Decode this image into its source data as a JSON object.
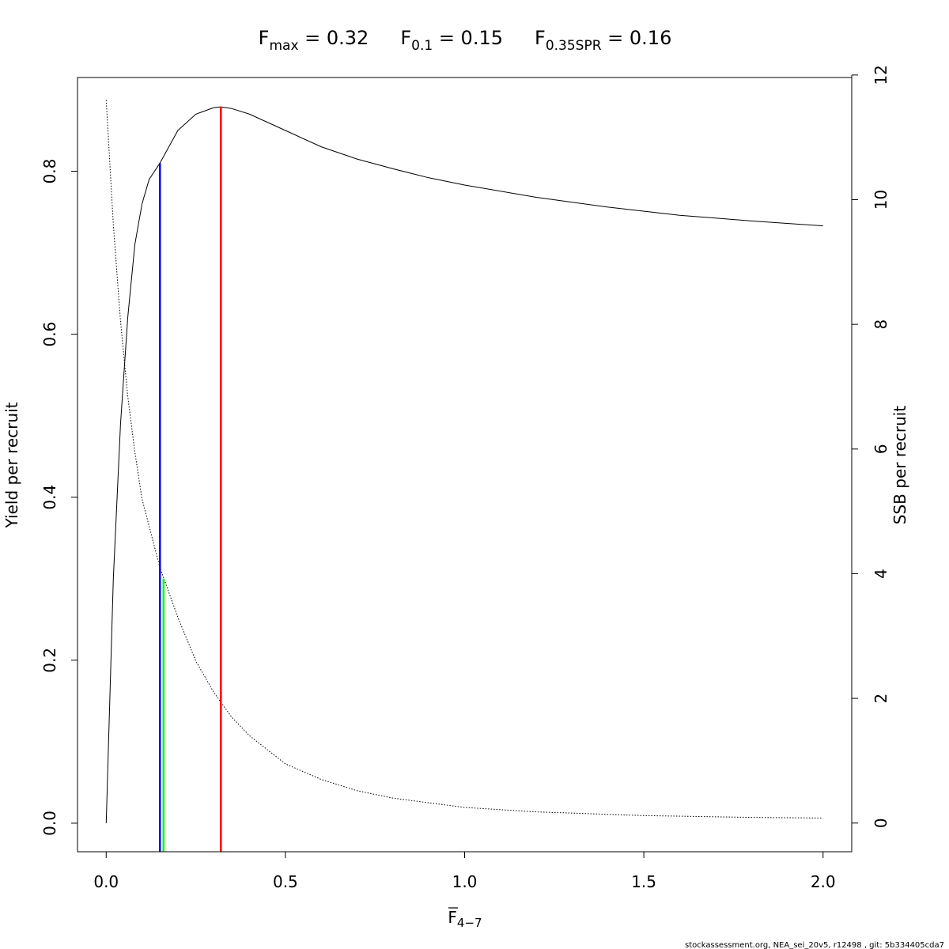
{
  "chart_data": {
    "type": "line",
    "title_parts": [
      {
        "base": "F",
        "sub": "max",
        "rest": " = 0.32"
      },
      {
        "base": "F",
        "sub": "0.1",
        "rest": " = 0.15"
      },
      {
        "base": "F",
        "sub": "0.35SPR",
        "rest": " = 0.16"
      }
    ],
    "xlabel": {
      "base": "F",
      "sub": "4−7"
    },
    "ylabel": "Yield per recruit",
    "y2label": "SSB per recruit",
    "xlim": [
      -0.08,
      2.08
    ],
    "ylim": [
      -0.035,
      0.915
    ],
    "y2lim": [
      -0.46,
      11.96
    ],
    "x_ticks": [
      0.0,
      0.5,
      1.0,
      1.5,
      2.0
    ],
    "x_tick_labels": [
      "0.0",
      "0.5",
      "1.0",
      "1.5",
      "2.0"
    ],
    "y_ticks": [
      0.0,
      0.2,
      0.4,
      0.6,
      0.8
    ],
    "y_tick_labels": [
      "0.0",
      "0.2",
      "0.4",
      "0.6",
      "0.8"
    ],
    "y2_ticks": [
      0,
      2,
      4,
      6,
      8,
      10,
      12
    ],
    "y2_tick_labels": [
      "0",
      "2",
      "4",
      "6",
      "8",
      "10",
      "12"
    ],
    "grid": false,
    "series": [
      {
        "axis": "left",
        "style": "solid",
        "color": "#000000",
        "x": [
          0.0,
          0.02,
          0.04,
          0.06,
          0.08,
          0.1,
          0.12,
          0.15,
          0.2,
          0.25,
          0.3,
          0.32,
          0.35,
          0.4,
          0.5,
          0.6,
          0.7,
          0.8,
          0.9,
          1.0,
          1.2,
          1.4,
          1.6,
          1.8,
          2.0
        ],
        "y": [
          0.0,
          0.3,
          0.49,
          0.62,
          0.71,
          0.76,
          0.79,
          0.81,
          0.85,
          0.87,
          0.878,
          0.879,
          0.877,
          0.87,
          0.85,
          0.83,
          0.815,
          0.803,
          0.792,
          0.783,
          0.768,
          0.756,
          0.746,
          0.739,
          0.733
        ]
      },
      {
        "axis": "right",
        "style": "dotted",
        "color": "#000000",
        "x": [
          0.0,
          0.02,
          0.04,
          0.06,
          0.08,
          0.1,
          0.15,
          0.2,
          0.25,
          0.3,
          0.35,
          0.4,
          0.5,
          0.6,
          0.7,
          0.8,
          1.0,
          1.2,
          1.5,
          1.8,
          2.0
        ],
        "y": [
          11.6,
          9.6,
          8.05,
          6.85,
          5.95,
          5.2,
          4.1,
          3.3,
          2.6,
          2.1,
          1.7,
          1.4,
          0.95,
          0.7,
          0.52,
          0.4,
          0.25,
          0.18,
          0.12,
          0.09,
          0.08
        ]
      }
    ],
    "reference_lines": [
      {
        "x": 0.15,
        "ymax": 0.81,
        "color": "#0000ff"
      },
      {
        "x": 0.16,
        "ymax": 0.3,
        "color": "#00ff00"
      },
      {
        "x": 0.32,
        "ymax": 0.879,
        "color": "#ff0000"
      }
    ]
  },
  "footer": "stockassessment.org, NEA_sei_20v5, r12498 , git: 5b334405cda7"
}
